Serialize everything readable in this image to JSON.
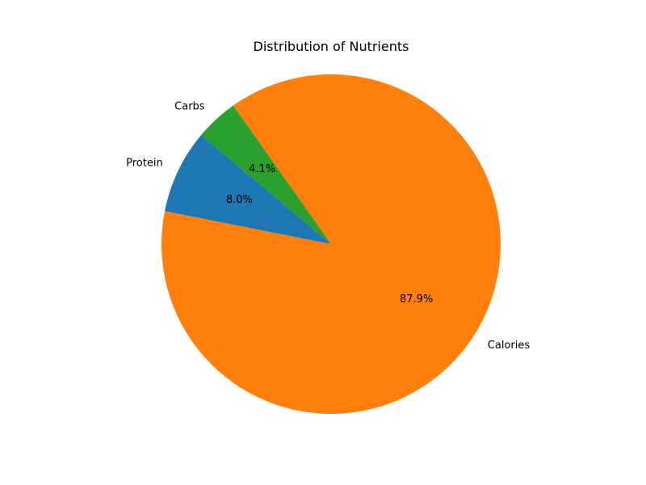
{
  "chart_data": {
    "type": "pie",
    "title": "Distribution of Nutrients",
    "start_angle_deg": 140,
    "direction": "counterclockwise",
    "slices": [
      {
        "label": "Protein",
        "value": 8.0,
        "pct_label": "8.0%",
        "color": "#1f77b4"
      },
      {
        "label": "Calories",
        "value": 87.9,
        "pct_label": "87.9%",
        "color": "#ff7f0e"
      },
      {
        "label": "Carbs",
        "value": 4.1,
        "pct_label": "4.1%",
        "color": "#2ca02c"
      }
    ]
  }
}
